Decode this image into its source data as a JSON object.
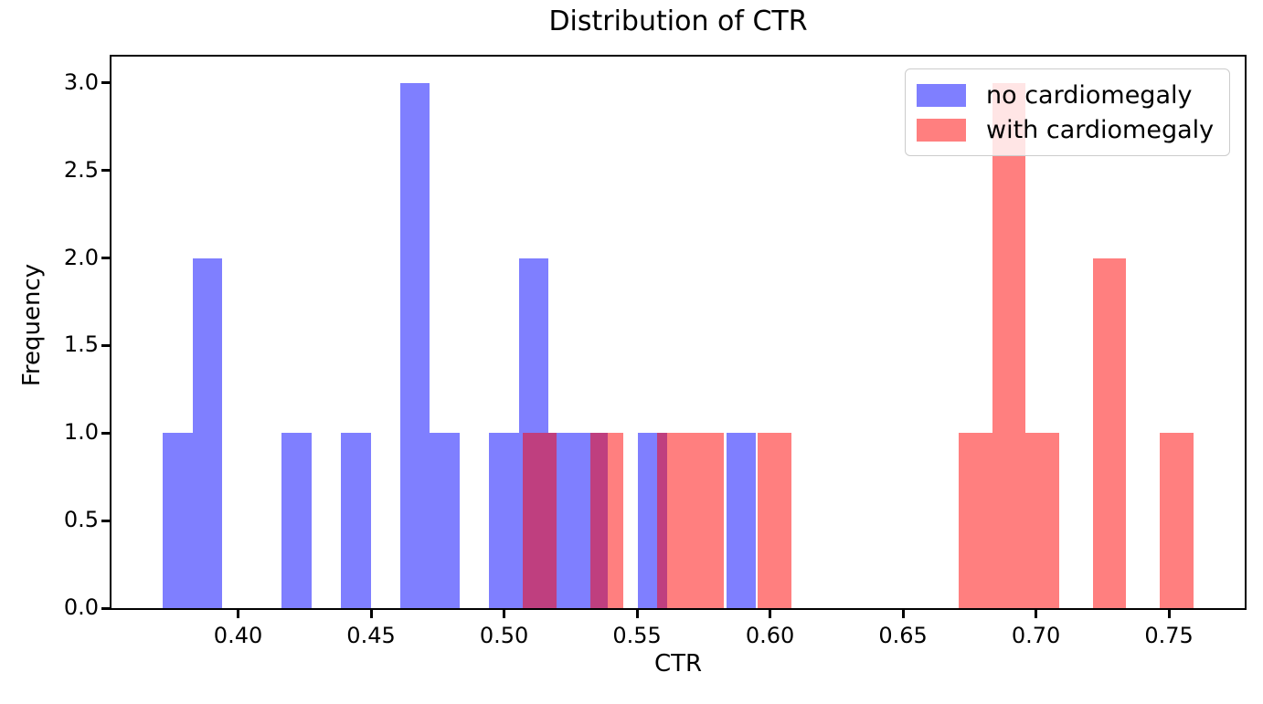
{
  "title": "Distribution of CTR",
  "x_axis": {
    "label": "CTR",
    "ticks": [
      "0.40",
      "0.45",
      "0.50",
      "0.55",
      "0.60",
      "0.65",
      "0.70",
      "0.75"
    ],
    "tick_values": [
      0.4,
      0.45,
      0.5,
      0.55,
      0.6,
      0.65,
      0.7,
      0.75
    ]
  },
  "y_axis": {
    "label": "Frequency",
    "ticks": [
      "0.0",
      "0.5",
      "1.0",
      "1.5",
      "2.0",
      "2.5",
      "3.0"
    ],
    "tick_values": [
      0.0,
      0.5,
      1.0,
      1.5,
      2.0,
      2.5,
      3.0
    ]
  },
  "legend": {
    "position": "upper right",
    "entries": [
      {
        "label": "no cardiomegaly",
        "color": "rgba(0,0,255,0.5)",
        "rendered_color": "#8080ff"
      },
      {
        "label": "with cardiomegaly",
        "color": "rgba(255,0,0,0.5)",
        "rendered_color": "#ff8080"
      }
    ]
  },
  "colors": {
    "no_cardiomegaly": "#8080ff",
    "with_cardiomegaly": "#ff8080",
    "overlap": "#bf4080",
    "axes": "#000000",
    "background": "#ffffff"
  },
  "chart_data": {
    "type": "histogram",
    "title": "Distribution of CTR",
    "xlabel": "CTR",
    "ylabel": "Frequency",
    "xlim": [
      0.3524,
      0.7785
    ],
    "ylim": [
      0,
      3.15
    ],
    "grid": false,
    "legend_position": "upper right",
    "series": [
      {
        "name": "no cardiomegaly",
        "color": "rgba(0,0,255,0.5)",
        "bin_start": 0.3718,
        "bin_width": 0.01115,
        "bin_count": 20,
        "counts": [
          1,
          2,
          0,
          0,
          1,
          0,
          1,
          0,
          3,
          1,
          0,
          1,
          2,
          1,
          1,
          0,
          1,
          0,
          0,
          1
        ],
        "total": 16
      },
      {
        "name": "with cardiomegaly",
        "color": "rgba(255,0,0,0.5)",
        "bin_start": 0.5071,
        "bin_width": 0.0126,
        "bin_count": 20,
        "counts": [
          1,
          0,
          1,
          0,
          1,
          1,
          0,
          1,
          0,
          0,
          0,
          0,
          0,
          1,
          3,
          1,
          0,
          2,
          0,
          1
        ],
        "total": 13
      }
    ]
  }
}
